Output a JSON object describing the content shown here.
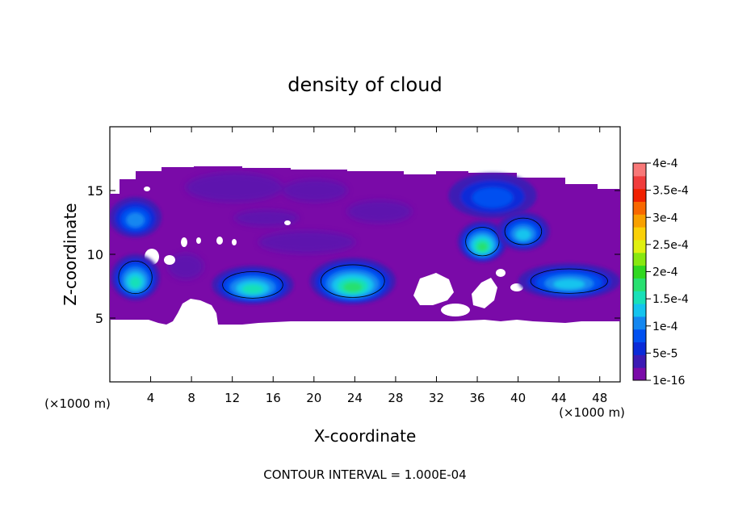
{
  "chart_data": {
    "type": "heatmap",
    "title": "density of cloud",
    "xlabel": "X-coordinate",
    "ylabel": "Z-coordinate",
    "x_unit": "(×1000 m)",
    "z_unit": "(×1000 m)",
    "xlim": [
      0,
      50
    ],
    "ylim": [
      0,
      20
    ],
    "xticks": [
      4,
      8,
      12,
      16,
      20,
      24,
      28,
      32,
      36,
      40,
      44,
      48
    ],
    "yticks": [
      5,
      10,
      15
    ],
    "footer": "CONTOUR INTERVAL = 1.000E-04",
    "colorbar": {
      "labels": [
        "1e-16",
        "5e-5",
        "1e-4",
        "1.5e-4",
        "2e-4",
        "2.5e-4",
        "3e-4",
        "3.5e-4",
        "4e-4"
      ],
      "colors": [
        "#7a0aa8",
        "#3c1ab4",
        "#0a2ad8",
        "#0050f0",
        "#1487f0",
        "#14c4ee",
        "#18e0b8",
        "#28e070",
        "#30d820",
        "#88e810",
        "#e0f010",
        "#fad008",
        "#f8a000",
        "#f86800",
        "#f02000",
        "#f03c3c",
        "#f87878"
      ]
    },
    "cloud_cells": [
      {
        "x": 2.5,
        "z": 12.9,
        "rx": 2.2,
        "rz": 1.4,
        "level": 4
      },
      {
        "x": 2.5,
        "z": 8.2,
        "rx": 2.0,
        "rz": 1.6,
        "level": 6
      },
      {
        "x": 14.0,
        "z": 7.6,
        "rx": 3.6,
        "rz": 1.3,
        "level": 6
      },
      {
        "x": 23.8,
        "z": 7.9,
        "rx": 3.8,
        "rz": 1.6,
        "level": 7
      },
      {
        "x": 37.5,
        "z": 14.6,
        "rx": 4.0,
        "rz": 1.6,
        "level": 3
      },
      {
        "x": 36.5,
        "z": 11.0,
        "rx": 2.0,
        "rz": 1.4,
        "level": 7
      },
      {
        "x": 40.5,
        "z": 11.8,
        "rx": 2.2,
        "rz": 1.3,
        "level": 5
      },
      {
        "x": 45.0,
        "z": 7.9,
        "rx": 4.6,
        "rz": 1.2,
        "level": 5
      }
    ]
  }
}
